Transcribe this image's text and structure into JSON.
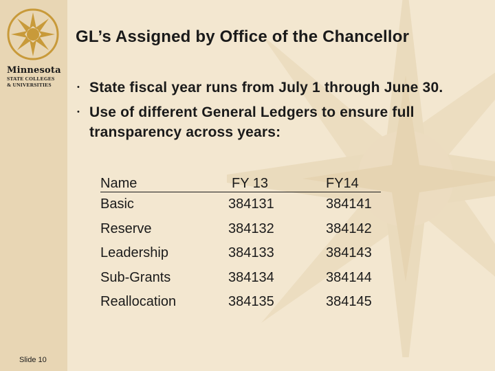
{
  "logo": {
    "name": "Minnesota",
    "line2": "STATE COLLEGES",
    "line3": "& UNIVERSITIES"
  },
  "title": "GL’s Assigned by Office of the Chancellor",
  "bullets": [
    "State fiscal year runs from July 1 through June 30.",
    "Use of different General Ledgers to ensure full transparency across years:"
  ],
  "table": {
    "headers": [
      "Name",
      "FY 13",
      "FY14"
    ],
    "rows": [
      [
        "Basic",
        "384131",
        "384141"
      ],
      [
        "Reserve",
        "384132",
        "384142"
      ],
      [
        "Leadership",
        "384133",
        "384143"
      ],
      [
        "Sub-Grants",
        "384134",
        "384144"
      ],
      [
        "Reallocation",
        "384135",
        "384145"
      ]
    ]
  },
  "footer": "Slide 10",
  "colors": {
    "background": "#f3e7d0",
    "sidebar": "#e8d6b4",
    "logo_star": "#c89a3a",
    "text": "#1a1a1a"
  }
}
